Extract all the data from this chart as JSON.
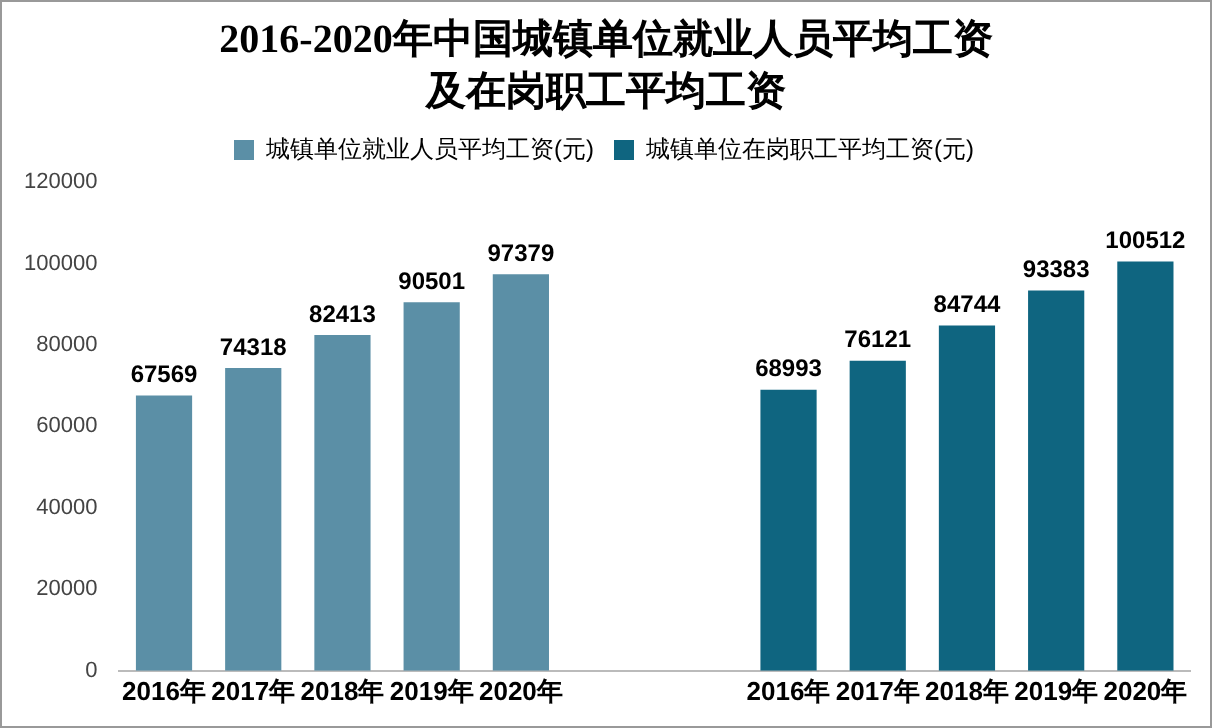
{
  "chart_data": {
    "type": "bar",
    "title": "2016-2020年中国城镇单位就业人员平均工资及在岗职工平均工资",
    "categories": [
      "2016年",
      "2017年",
      "2018年",
      "2019年",
      "2020年",
      null,
      null,
      "2016年",
      "2017年",
      "2018年",
      "2019年",
      "2020年"
    ],
    "series": [
      {
        "name": "城镇单位就业人员平均工资(元)",
        "color": "#5b8fa6",
        "values": [
          67569,
          74318,
          82413,
          90501,
          97379,
          null,
          null,
          null,
          null,
          null,
          null,
          null
        ]
      },
      {
        "name": "城镇单位在岗职工平均工资(元)",
        "color": "#0f6580",
        "values": [
          null,
          null,
          null,
          null,
          null,
          null,
          null,
          68993,
          76121,
          84744,
          93383,
          100512
        ]
      }
    ],
    "ylim": [
      0,
      120000
    ],
    "yticks": [
      0,
      20000,
      40000,
      60000,
      80000,
      100000,
      120000
    ],
    "grid": false,
    "legend": "top",
    "data_labels": true
  }
}
